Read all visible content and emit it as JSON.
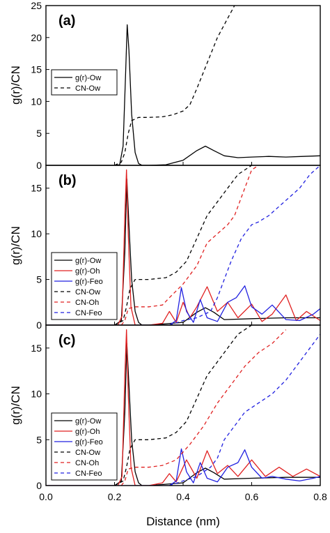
{
  "chart_data": {
    "type": "line",
    "xlabel": "Distance (nm)",
    "ylabel": "g(r)/CN",
    "x_ticks": [
      "0.0",
      "0.2",
      "0.4",
      "0.6",
      "0.8"
    ],
    "xlim": [
      0,
      0.8
    ],
    "panels": [
      {
        "tag": "(a)",
        "ylim": [
          0,
          25
        ],
        "y_ticks": [
          "0",
          "5",
          "10",
          "15",
          "20",
          "25"
        ],
        "legend_position": "upper-left",
        "series": [
          {
            "name": "g(r)-Ow",
            "color": "#000000",
            "dash": "solid",
            "x": [
              0.0,
              0.2,
              0.215,
              0.225,
              0.232,
              0.237,
              0.242,
              0.25,
              0.26,
              0.27,
              0.28,
              0.3,
              0.35,
              0.4,
              0.44,
              0.465,
              0.49,
              0.52,
              0.56,
              0.6,
              0.65,
              0.7,
              0.75,
              0.8
            ],
            "y": [
              0,
              0,
              0.1,
              3,
              14,
              22,
              18,
              8,
              2,
              0.3,
              0,
              0,
              0.1,
              0.8,
              2.3,
              3.0,
              2.3,
              1.5,
              1.2,
              1.3,
              1.4,
              1.3,
              1.4,
              1.5
            ]
          },
          {
            "name": "CN-Ow",
            "color": "#000000",
            "dash": "dashed",
            "x": [
              0.2,
              0.22,
              0.23,
              0.24,
              0.25,
              0.27,
              0.3,
              0.34,
              0.37,
              0.4,
              0.42,
              0.44,
              0.47,
              0.5,
              0.53,
              0.55
            ],
            "y": [
              0,
              0.5,
              2,
              5,
              7,
              7.5,
              7.5,
              7.6,
              7.9,
              8.5,
              9.5,
              12,
              16,
              20,
              23,
              25
            ]
          }
        ]
      },
      {
        "tag": "(b)",
        "ylim": [
          0,
          17.5
        ],
        "y_ticks": [
          "0",
          "5",
          "10",
          "15"
        ],
        "legend_position": "lower-left",
        "series": [
          {
            "name": "g(r)-Ow",
            "color": "#000000",
            "dash": "solid",
            "x": [
              0.0,
              0.2,
              0.22,
              0.23,
              0.236,
              0.242,
              0.25,
              0.26,
              0.27,
              0.28,
              0.3,
              0.4,
              0.44,
              0.465,
              0.49,
              0.52,
              0.6,
              0.7,
              0.8
            ],
            "y": [
              0,
              0,
              0.5,
              8,
              16,
              11,
              5,
              1.5,
              0.3,
              0,
              0,
              0.3,
              1.4,
              1.9,
              1.4,
              0.6,
              0.7,
              0.8,
              0.8
            ]
          },
          {
            "name": "g(r)-Oh",
            "color": "#e02020",
            "dash": "solid",
            "x": [
              0.0,
              0.21,
              0.222,
              0.23,
              0.235,
              0.24,
              0.248,
              0.26,
              0.3,
              0.34,
              0.36,
              0.38,
              0.4,
              0.42,
              0.44,
              0.47,
              0.5,
              0.53,
              0.56,
              0.6,
              0.63,
              0.66,
              0.7,
              0.73,
              0.76,
              0.8
            ],
            "y": [
              0,
              0,
              1,
              12,
              17,
              10,
              2,
              0,
              0,
              0.2,
              1.5,
              0.3,
              2.5,
              0.8,
              2.0,
              4.2,
              1.5,
              2.5,
              0.8,
              2.3,
              0.4,
              1.2,
              3.3,
              0.5,
              1.5,
              0.5
            ]
          },
          {
            "name": "g(r)-Feo",
            "color": "#2020e0",
            "dash": "solid",
            "x": [
              0.0,
              0.36,
              0.38,
              0.395,
              0.41,
              0.43,
              0.45,
              0.47,
              0.5,
              0.53,
              0.555,
              0.58,
              0.6,
              0.63,
              0.66,
              0.7,
              0.74,
              0.78,
              0.8
            ],
            "y": [
              0,
              0,
              0.5,
              4.1,
              1.5,
              0.3,
              2.8,
              0.8,
              0.4,
              2.5,
              3.0,
              4.3,
              2.0,
              1.2,
              2.2,
              0.6,
              0.5,
              1.2,
              1.8
            ]
          },
          {
            "name": "CN-Ow",
            "color": "#000000",
            "dash": "dashed",
            "x": [
              0.2,
              0.225,
              0.235,
              0.245,
              0.26,
              0.3,
              0.35,
              0.38,
              0.41,
              0.44,
              0.47,
              0.5,
              0.53,
              0.56,
              0.6
            ],
            "y": [
              0,
              0.5,
              2,
              4,
              5,
              5,
              5.2,
              5.8,
              7,
              9.5,
              12,
              13.5,
              15,
              16.5,
              17.5
            ]
          },
          {
            "name": "CN-Oh",
            "color": "#e02020",
            "dash": "dashed",
            "x": [
              0.22,
              0.23,
              0.24,
              0.26,
              0.3,
              0.34,
              0.36,
              0.4,
              0.44,
              0.47,
              0.5,
              0.53,
              0.55,
              0.58,
              0.6,
              0.62
            ],
            "y": [
              0,
              0.5,
              1.8,
              2,
              2,
              2.2,
              3,
              4.5,
              6.5,
              9,
              10,
              11,
              12,
              15,
              17,
              17.5
            ]
          },
          {
            "name": "CN-Feo",
            "color": "#2020e0",
            "dash": "dashed",
            "x": [
              0.36,
              0.4,
              0.44,
              0.48,
              0.5,
              0.52,
              0.54,
              0.57,
              0.6,
              0.62,
              0.65,
              0.68,
              0.71,
              0.74,
              0.77,
              0.8
            ],
            "y": [
              0,
              0.5,
              0.8,
              1.5,
              3,
              5,
              7,
              9.5,
              11,
              11.3,
              12,
              13,
              14,
              15,
              16.5,
              17.5
            ]
          }
        ]
      },
      {
        "tag": "(c)",
        "ylim": [
          0,
          17.5
        ],
        "y_ticks": [
          "0",
          "5",
          "10",
          "15"
        ],
        "legend_position": "lower-left",
        "series": [
          {
            "name": "g(r)-Ow",
            "color": "#000000",
            "dash": "solid",
            "x": [
              0.0,
              0.2,
              0.22,
              0.23,
              0.236,
              0.242,
              0.25,
              0.26,
              0.27,
              0.28,
              0.3,
              0.4,
              0.44,
              0.465,
              0.49,
              0.52,
              0.6,
              0.7,
              0.8
            ],
            "y": [
              0,
              0,
              0.5,
              8,
              15.5,
              11,
              5,
              1.5,
              0.3,
              0,
              0,
              0.3,
              1.4,
              1.9,
              1.4,
              0.7,
              0.8,
              0.9,
              0.9
            ]
          },
          {
            "name": "g(r)-Oh",
            "color": "#e02020",
            "dash": "solid",
            "x": [
              0.0,
              0.21,
              0.222,
              0.23,
              0.235,
              0.24,
              0.248,
              0.26,
              0.3,
              0.34,
              0.36,
              0.38,
              0.41,
              0.44,
              0.47,
              0.5,
              0.53,
              0.56,
              0.6,
              0.64,
              0.68,
              0.72,
              0.76,
              0.8
            ],
            "y": [
              0,
              0,
              1,
              12,
              17,
              10,
              2,
              0,
              0,
              0.3,
              1.3,
              0.4,
              2.8,
              0.8,
              3.8,
              1.3,
              2.2,
              1.0,
              2.8,
              1.0,
              2.0,
              1.0,
              1.8,
              1.0
            ]
          },
          {
            "name": "g(r)-Feo",
            "color": "#2020e0",
            "dash": "solid",
            "x": [
              0.0,
              0.36,
              0.38,
              0.395,
              0.41,
              0.43,
              0.45,
              0.47,
              0.5,
              0.53,
              0.56,
              0.58,
              0.6,
              0.63,
              0.66,
              0.7,
              0.74,
              0.78,
              0.8
            ],
            "y": [
              0,
              0,
              0.5,
              4.0,
              1.5,
              0.3,
              2.5,
              0.8,
              0.4,
              2.0,
              2.5,
              3.9,
              2.0,
              0.8,
              1.0,
              0.7,
              0.5,
              0.8,
              1.0
            ]
          },
          {
            "name": "CN-Ow",
            "color": "#000000",
            "dash": "dashed",
            "x": [
              0.2,
              0.225,
              0.235,
              0.245,
              0.26,
              0.3,
              0.35,
              0.38,
              0.41,
              0.44,
              0.47,
              0.5,
              0.53,
              0.56,
              0.6
            ],
            "y": [
              0,
              0.5,
              2,
              4,
              5,
              5,
              5.2,
              5.8,
              7,
              9.5,
              12,
              13.5,
              15,
              16.5,
              17.5
            ]
          },
          {
            "name": "CN-Oh",
            "color": "#e02020",
            "dash": "dashed",
            "x": [
              0.22,
              0.23,
              0.24,
              0.26,
              0.3,
              0.34,
              0.38,
              0.42,
              0.46,
              0.5,
              0.54,
              0.58,
              0.62,
              0.66,
              0.7
            ],
            "y": [
              0,
              0.5,
              1.8,
              2,
              2,
              2.2,
              2.8,
              4.5,
              6.5,
              9,
              11,
              13,
              14.5,
              15.5,
              17
            ]
          },
          {
            "name": "CN-Feo",
            "color": "#2020e0",
            "dash": "dashed",
            "x": [
              0.36,
              0.4,
              0.44,
              0.48,
              0.5,
              0.52,
              0.55,
              0.58,
              0.62,
              0.66,
              0.7,
              0.74,
              0.78,
              0.8
            ],
            "y": [
              0,
              0.5,
              1,
              2,
              3,
              5,
              6.5,
              8,
              9,
              10,
              11.5,
              13.5,
              15.5,
              16.5
            ]
          }
        ]
      }
    ]
  }
}
